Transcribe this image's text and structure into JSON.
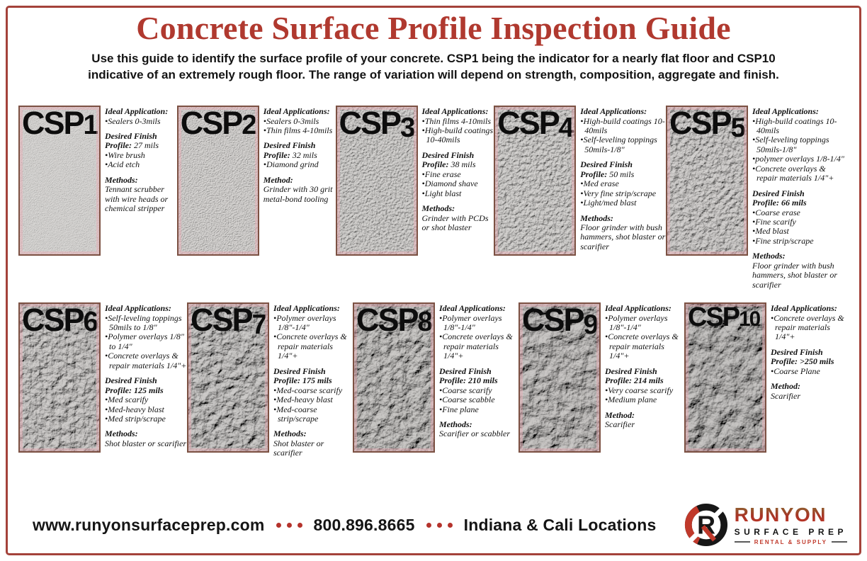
{
  "page": {
    "title": "Concrete Surface Profile Inspection Guide",
    "subtitle": "Use this guide to identify the surface profile of your concrete. CSP1 being the indicator for a nearly flat floor and CSP10\nindicative of an extremely rough floor. The range of variation will depend on strength, composition, aggregate and finish."
  },
  "panels": [
    {
      "id": "csp1",
      "label_prefix": "CSP",
      "label_number": "1",
      "applications_heading": "Ideal Application:",
      "applications": [
        "Sealers 0-3mils"
      ],
      "finish_heading": "Desired Finish",
      "profile_label": "Profile:",
      "profile_value": "27 mils",
      "finish_items": [
        "Wire brush",
        "Acid etch"
      ],
      "methods_heading": "Methods:",
      "methods": "Tennant scrubber with wire heads or chemical stripper"
    },
    {
      "id": "csp2",
      "label_prefix": "CSP",
      "label_number": "2",
      "applications_heading": "Ideal Applications:",
      "applications": [
        "Sealers 0-3mils",
        "Thin films 4-10mils"
      ],
      "finish_heading": "Desired Finish",
      "profile_label": "Profile:",
      "profile_value": "32 mils",
      "finish_items": [
        "Diamond grind"
      ],
      "methods_heading": "Method:",
      "methods": "Grinder with 30 grit metal-bond tooling"
    },
    {
      "id": "csp3",
      "label_prefix": "CSP",
      "label_number": "3",
      "applications_heading": "Ideal Applications:",
      "applications": [
        "Thin films 4-10mils",
        "High-build coatings 10-40mils"
      ],
      "finish_heading": "Desired Finish",
      "profile_label": "Profile:",
      "profile_value": "38 mils",
      "finish_items": [
        "Fine erase",
        "Diamond shave",
        "Light blast"
      ],
      "methods_heading": "Methods:",
      "methods": "Grinder with PCDs or shot blaster"
    },
    {
      "id": "csp4",
      "label_prefix": "CSP",
      "label_number": "4",
      "applications_heading": "Ideal Applications:",
      "applications": [
        "High-build coatings 10-40mils",
        "Self-leveling toppings 50mils-1/8\""
      ],
      "finish_heading": "Desired Finish",
      "profile_label": "Profile:",
      "profile_value": "50 mils",
      "finish_items": [
        "Med erase",
        "Very fine strip/scrape",
        "Light/med blast"
      ],
      "methods_heading": "Methods:",
      "methods": "Floor grinder with bush hammers, shot blaster or scarifier"
    },
    {
      "id": "csp5",
      "label_prefix": "CSP",
      "label_number": "5",
      "applications_heading": "Ideal Applications:",
      "applications": [
        "High-build coatings 10-40mils",
        "Self-leveling toppings 50mils-1/8\"",
        "polymer overlays 1/8-1/4\"",
        "Concrete overlays & repair materials 1/4\"+"
      ],
      "finish_heading": "Desired Finish",
      "profile_label": "Profile:",
      "profile_value": "66 mils",
      "finish_items": [
        "Coarse erase",
        "Fine scarify",
        "Med blast",
        "Fine strip/scrape"
      ],
      "methods_heading": "Methods:",
      "methods": "Floor grinder with bush hammers, shot blaster or scarifier"
    },
    {
      "id": "csp6",
      "label_prefix": "CSP",
      "label_number": "6",
      "applications_heading": "Ideal Applications:",
      "applications": [
        "Self-leveling toppings 50mils to 1/8\"",
        "Polymer overlays 1/8\" to 1/4\"",
        "Concrete overlays & repair materials 1/4\"+"
      ],
      "finish_heading": "Desired Finish",
      "profile_label": "Profile:",
      "profile_value": "125 mils",
      "finish_items": [
        "Med scarify",
        "Med-heavy blast",
        "Med strip/scrape"
      ],
      "methods_heading": "Methods:",
      "methods": "Shot blaster or scarifier"
    },
    {
      "id": "csp7",
      "label_prefix": "CSP",
      "label_number": "7",
      "applications_heading": "Ideal Applications:",
      "applications": [
        "Polymer overlays 1/8\"-1/4\"",
        "Concrete overlays & repair materials 1/4\"+"
      ],
      "finish_heading": "Desired Finish",
      "profile_label": "Profile:",
      "profile_value": "175 mils",
      "finish_items": [
        "Med-coarse scarify",
        "Med-heavy blast",
        "Med-coarse strip/scrape"
      ],
      "methods_heading": "Methods:",
      "methods": "Shot blaster or scarifier"
    },
    {
      "id": "csp8",
      "label_prefix": "CSP",
      "label_number": "8",
      "applications_heading": "Ideal Applications:",
      "applications": [
        "Polymer overlays 1/8\"-1/4\"",
        "Concrete overlays & repair materials 1/4\"+"
      ],
      "finish_heading": "Desired Finish",
      "profile_label": "Profile:",
      "profile_value": "210 mils",
      "finish_items": [
        "Coarse scarify",
        "Coarse scabble",
        "Fine plane"
      ],
      "methods_heading": "Methods:",
      "methods": "Scarifier or scabbler"
    },
    {
      "id": "csp9",
      "label_prefix": "CSP",
      "label_number": "9",
      "applications_heading": "Ideal Applications:",
      "applications": [
        "Polymer overlays 1/8\"-1/4\"",
        "Concrete overlays & repair materials 1/4\"+"
      ],
      "finish_heading": "Desired Finish",
      "profile_label": "Profile:",
      "profile_value": "214 mils",
      "finish_items": [
        "Very coarse scarify",
        "Medium plane"
      ],
      "methods_heading": "Method:",
      "methods": "Scarifier"
    },
    {
      "id": "csp10",
      "label_prefix": "CSP",
      "label_number": "10",
      "applications_heading": "Ideal Applications:",
      "applications": [
        "Concrete overlays & repair materials 1/4\"+"
      ],
      "finish_heading": "Desired Finish",
      "profile_label": "Profile:",
      "profile_value": ">250 mils",
      "finish_items": [
        "Coarse Plane"
      ],
      "methods_heading": "Method:",
      "methods": "Scarifier"
    }
  ],
  "footer": {
    "website": "www.runyonsurfaceprep.com",
    "phone": "800.896.8665",
    "locations": "Indiana & Cali Locations"
  },
  "logo": {
    "monogram": "R",
    "name": "RUNYON",
    "subname": "SURFACE PREP",
    "tagline": "RENTAL & SUPPLY"
  },
  "colors": {
    "title_red": "#b0392f",
    "dot_red": "#b5332c",
    "logo_red": "#c0392b",
    "panel_border_brown": "#7c5143",
    "page_border_red": "#a4423a"
  }
}
